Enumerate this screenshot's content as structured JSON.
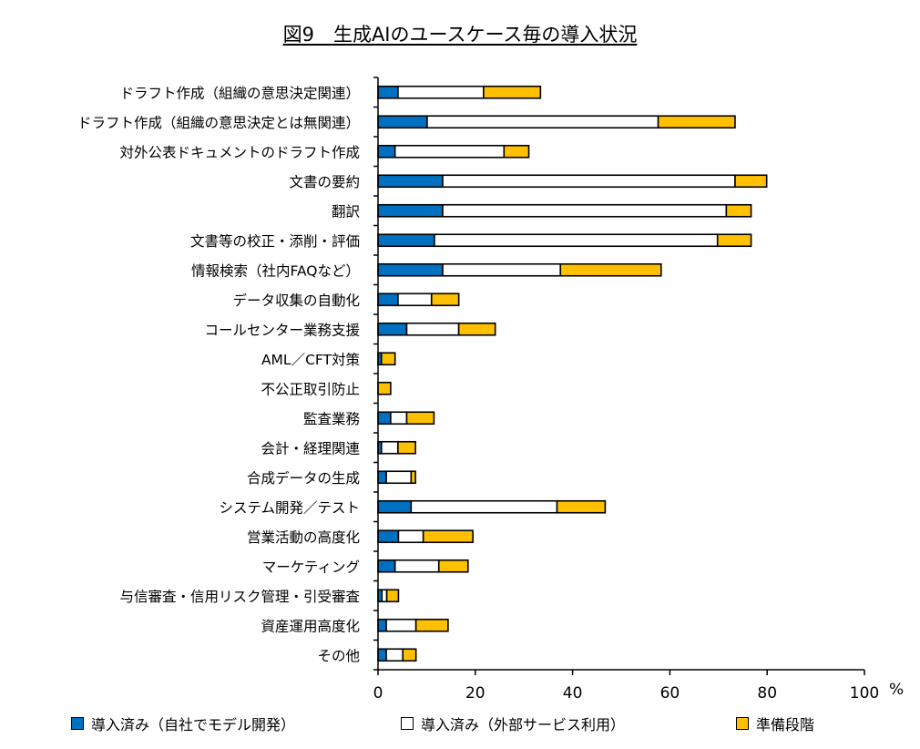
{
  "chart_data": {
    "type": "bar",
    "orientation": "horizontal",
    "stacked": true,
    "title": "図9　生成AIのユースケース毎の導入状況",
    "xlabel": "%",
    "xlim": [
      0,
      100
    ],
    "xticks": [
      0,
      20,
      40,
      60,
      80,
      100
    ],
    "grid": false,
    "legend_position": "bottom",
    "categories": [
      "ドラフト作成（組織の意思決定関連）",
      "ドラフト作成（組織の意思決定とは無関連）",
      "対外公表ドキュメントのドラフト作成",
      "文書の要約",
      "翻訳",
      "文書等の校正・添削・評価",
      "情報検索（社内FAQなど）",
      "データ収集の自動化",
      "コールセンター業務支援",
      "AML／CFT対策",
      "不公正取引防止",
      "監査業務",
      "会計・経理関連",
      "合成データの生成",
      "システム開発／テスト",
      "営業活動の高度化",
      "マーケティング",
      "与信審査・信用リスク管理・引受審査",
      "資産運用高度化",
      "その他"
    ],
    "series": [
      {
        "name": "導入済み（自社でモデル開発）",
        "color": "#0070c0",
        "values": [
          4.1,
          10.1,
          3.5,
          13.3,
          13.3,
          11.6,
          13.3,
          4.1,
          5.9,
          0.7,
          0,
          2.6,
          0.7,
          1.7,
          6.8,
          4.2,
          3.5,
          0.8,
          1.7,
          1.7
        ]
      },
      {
        "name": "導入済み（外部サービス利用）",
        "color": "#ffffff",
        "values": [
          17.6,
          47.5,
          22.4,
          60.1,
          58.3,
          58.2,
          24.2,
          6.9,
          10.7,
          0,
          0,
          3.3,
          3.4,
          5.1,
          30.0,
          5.1,
          9.0,
          1.0,
          6.1,
          3.4
        ]
      },
      {
        "name": "準備段階",
        "color": "#ffc000",
        "values": [
          11.7,
          15.8,
          5.1,
          6.5,
          5.1,
          6.9,
          20.7,
          5.6,
          7.5,
          2.8,
          2.6,
          5.6,
          3.6,
          0.9,
          9.9,
          10.2,
          6.0,
          2.4,
          6.6,
          2.7
        ]
      }
    ]
  }
}
